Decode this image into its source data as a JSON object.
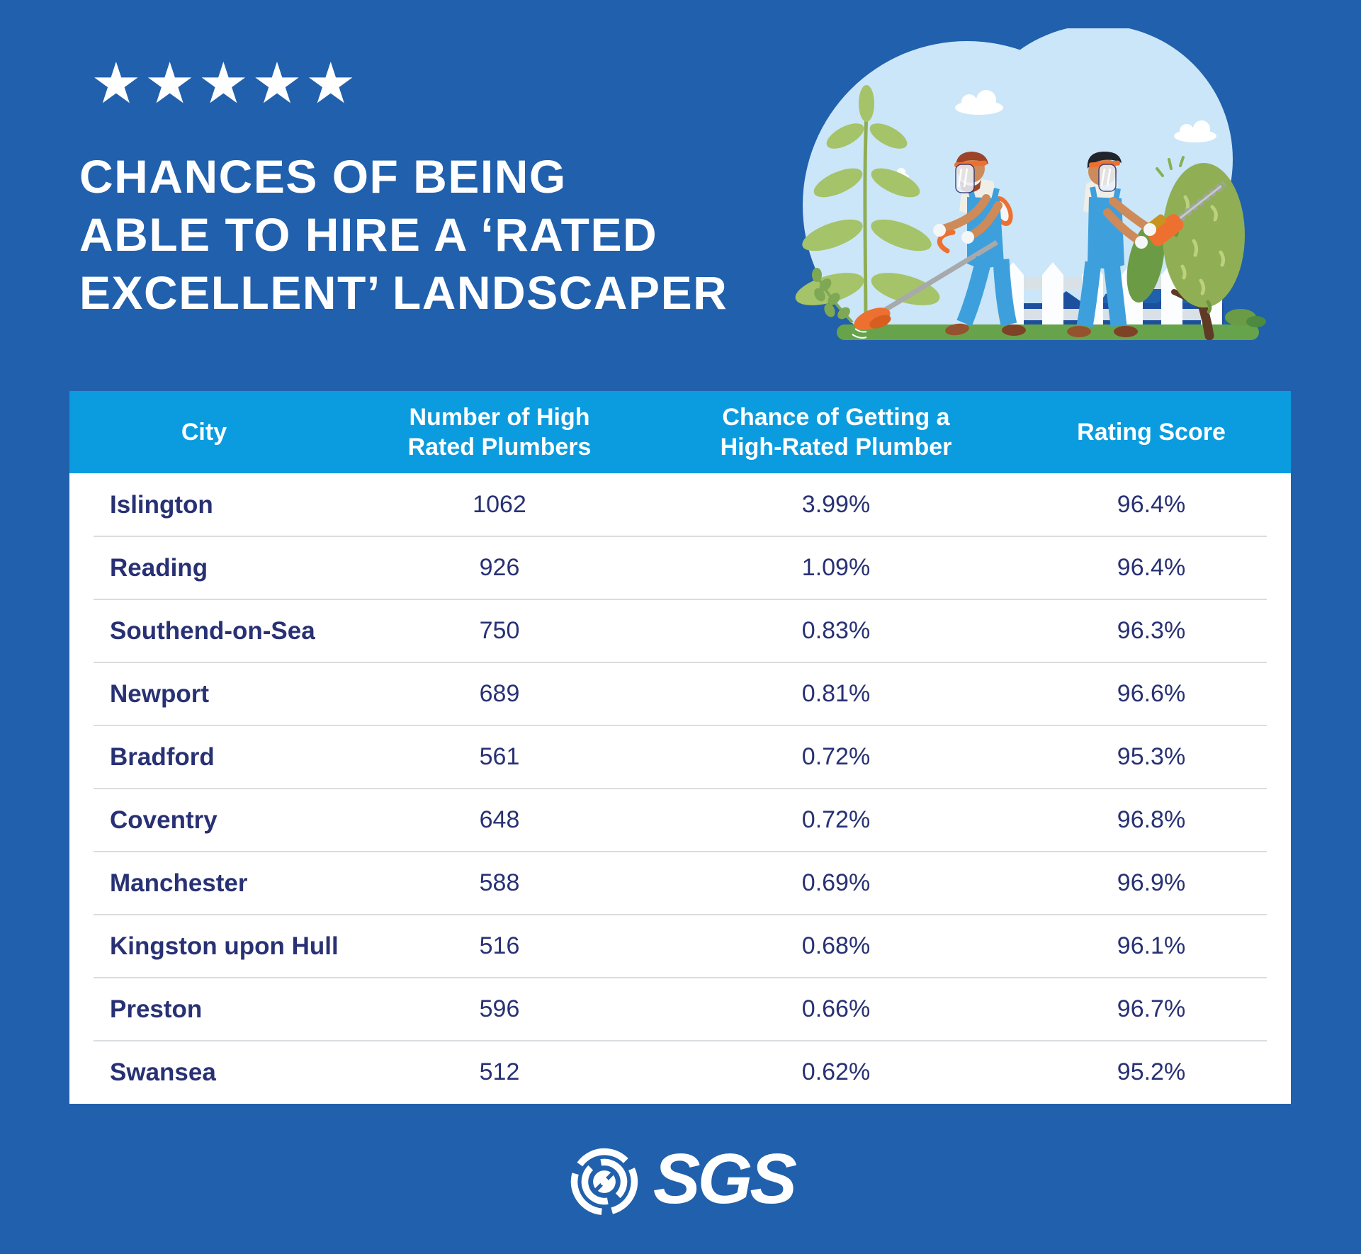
{
  "page": {
    "background_color": "#2160AC",
    "table_header_color": "#0B9CE0",
    "table_text_color": "#283173"
  },
  "header": {
    "stars": 5,
    "star_icon": "star",
    "title_lines": [
      "CHANCES OF BEING",
      "ABLE TO HIRE A ‘RATED",
      "EXCELLENT’ LANDSCAPER"
    ]
  },
  "illustration": {
    "description": "two landscapers with face shields, string trimmer and hedge trimmer, plant, picket fence and tree on light blue cloud background",
    "sky_color": "#CBE6F8",
    "grass_color": "#67A34A",
    "overalls_color": "#3E9FDD",
    "tool_color": "#EE7030"
  },
  "table": {
    "columns": [
      {
        "lines": [
          "City",
          ""
        ]
      },
      {
        "lines": [
          "Number of High",
          "Rated Plumbers"
        ]
      },
      {
        "lines": [
          "Chance of Getting a",
          "High-Rated Plumber"
        ]
      },
      {
        "lines": [
          "Rating Score",
          ""
        ]
      }
    ],
    "rows": [
      {
        "city": "Islington",
        "plumbers": "1062",
        "chance": "3.99%",
        "rating": "96.4%"
      },
      {
        "city": "Reading",
        "plumbers": "926",
        "chance": "1.09%",
        "rating": "96.4%"
      },
      {
        "city": "Southend-on-Sea",
        "plumbers": "750",
        "chance": "0.83%",
        "rating": "96.3%"
      },
      {
        "city": "Newport",
        "plumbers": "689",
        "chance": "0.81%",
        "rating": "96.6%"
      },
      {
        "city": "Bradford",
        "plumbers": "561",
        "chance": "0.72%",
        "rating": "95.3%"
      },
      {
        "city": "Coventry",
        "plumbers": "648",
        "chance": "0.72%",
        "rating": "96.8%"
      },
      {
        "city": "Manchester",
        "plumbers": "588",
        "chance": "0.69%",
        "rating": "96.9%"
      },
      {
        "city": "Kingston upon Hull",
        "plumbers": "516",
        "chance": "0.68%",
        "rating": "96.1%"
      },
      {
        "city": "Preston",
        "plumbers": "596",
        "chance": "0.66%",
        "rating": "96.7%"
      },
      {
        "city": "Swansea",
        "plumbers": "512",
        "chance": "0.62%",
        "rating": "95.2%"
      }
    ]
  },
  "footer": {
    "brand": "SGS"
  },
  "chart_data": {
    "type": "table",
    "title": "Chances of Being Able to Hire a 'Rated Excellent' Landscaper",
    "columns": [
      "City",
      "Number of High Rated Plumbers",
      "Chance of Getting a High-Rated Plumber",
      "Rating Score"
    ],
    "rows": [
      [
        "Islington",
        1062,
        "3.99%",
        "96.4%"
      ],
      [
        "Reading",
        926,
        "1.09%",
        "96.4%"
      ],
      [
        "Southend-on-Sea",
        750,
        "0.83%",
        "96.3%"
      ],
      [
        "Newport",
        689,
        "0.81%",
        "96.6%"
      ],
      [
        "Bradford",
        561,
        "0.72%",
        "95.3%"
      ],
      [
        "Coventry",
        648,
        "0.72%",
        "96.8%"
      ],
      [
        "Manchester",
        588,
        "0.69%",
        "96.9%"
      ],
      [
        "Kingston upon Hull",
        516,
        "0.68%",
        "96.1%"
      ],
      [
        "Preston",
        596,
        "0.66%",
        "96.7%"
      ],
      [
        "Swansea",
        512,
        "0.62%",
        "95.2%"
      ]
    ]
  }
}
